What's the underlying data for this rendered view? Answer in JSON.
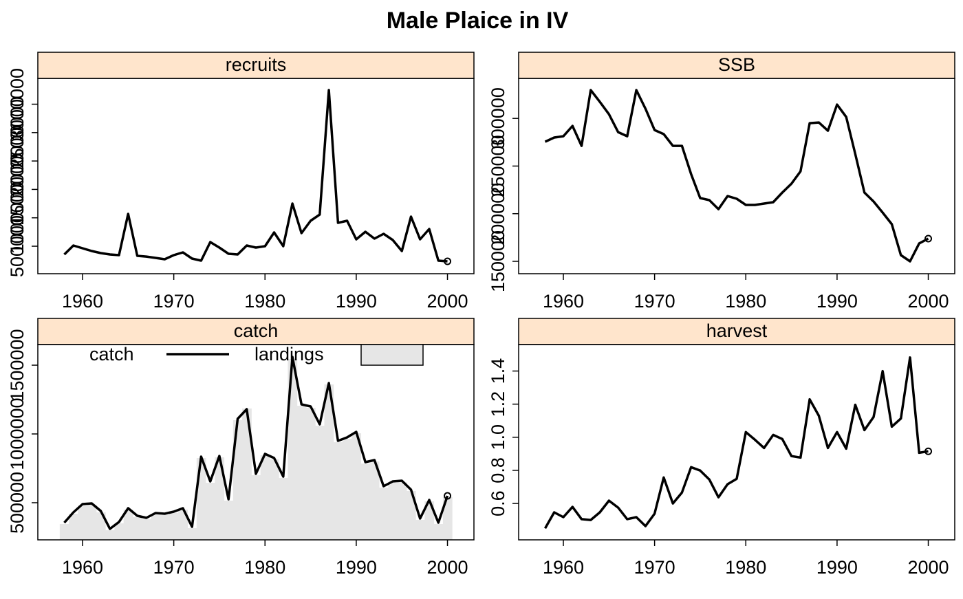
{
  "title": "Male Plaice in IV",
  "chart_data": [
    {
      "type": "line",
      "title": "recruits",
      "x": [
        1958,
        1959,
        1960,
        1961,
        1962,
        1963,
        1964,
        1965,
        1966,
        1967,
        1968,
        1969,
        1970,
        1971,
        1972,
        1973,
        1974,
        1975,
        1976,
        1977,
        1978,
        1979,
        1980,
        1981,
        1982,
        1983,
        1984,
        1985,
        1986,
        1987,
        1988,
        1989,
        1990,
        1991,
        1992,
        1993,
        1994,
        1995,
        1996,
        1997,
        1998,
        1999,
        2000
      ],
      "series": [
        {
          "name": "recruits",
          "color": "#000000",
          "values": [
            355000,
            512000,
            464000,
            415000,
            379000,
            355000,
            343000,
            1069000,
            331000,
            318000,
            294000,
            270000,
            343000,
            391000,
            282000,
            246000,
            573000,
            476000,
            367000,
            355000,
            512000,
            476000,
            500000,
            742000,
            500000,
            1251000,
            730000,
            948000,
            1057000,
            3248000,
            912000,
            948000,
            621000,
            754000,
            633000,
            718000,
            609000,
            415000,
            1021000,
            621000,
            803000,
            246000,
            234000
          ]
        }
      ],
      "xlim": [
        1955.1,
        2002.9
      ],
      "xticks": [
        1960,
        1970,
        1980,
        1990,
        2000
      ],
      "ylim": [
        16000,
        3454000
      ],
      "yticks": [
        500000,
        1000000,
        1500000,
        2000000,
        2500000,
        3000000
      ]
    },
    {
      "type": "line",
      "title": "SSB",
      "x": [
        1958,
        1959,
        1960,
        1961,
        1962,
        1963,
        1964,
        1965,
        1966,
        1967,
        1968,
        1969,
        1970,
        1971,
        1972,
        1973,
        1974,
        1975,
        1976,
        1977,
        1978,
        1979,
        1980,
        1981,
        1982,
        1983,
        1984,
        1985,
        1986,
        1987,
        1988,
        1989,
        1990,
        1991,
        1992,
        1993,
        1994,
        1995,
        1996,
        1997,
        1998,
        1999,
        2000
      ],
      "series": [
        {
          "name": "SSB",
          "color": "#000000",
          "values": [
            275500,
            279900,
            281300,
            292100,
            271200,
            329700,
            317400,
            304400,
            285600,
            281300,
            329700,
            310200,
            287800,
            283500,
            271200,
            271200,
            241600,
            216400,
            214200,
            204800,
            218500,
            215700,
            209200,
            209200,
            210600,
            212100,
            222200,
            231500,
            244500,
            295000,
            295700,
            287100,
            314500,
            301500,
            262600,
            222200,
            212800,
            201200,
            189000,
            156500,
            150000,
            168800,
            173800
          ]
        }
      ],
      "xlim": [
        1955.1,
        2002.9
      ],
      "xticks": [
        1960,
        1970,
        1980,
        1990,
        2000
      ],
      "ylim": [
        137000,
        342000
      ],
      "yticks": [
        150000,
        200000,
        250000,
        300000
      ]
    },
    {
      "type": "line",
      "title": "catch",
      "x": [
        1958,
        1959,
        1960,
        1961,
        1962,
        1963,
        1964,
        1965,
        1966,
        1967,
        1968,
        1969,
        1970,
        1971,
        1972,
        1973,
        1974,
        1975,
        1976,
        1977,
        1978,
        1979,
        1980,
        1981,
        1982,
        1983,
        1984,
        1985,
        1986,
        1987,
        1988,
        1989,
        1990,
        1991,
        1992,
        1993,
        1994,
        1995,
        1996,
        1997,
        1998,
        1999,
        2000
      ],
      "series": [
        {
          "name": "catch",
          "color": "#000000",
          "values": [
            355000,
            430000,
            490000,
            495000,
            440000,
            310000,
            360000,
            460000,
            405000,
            390000,
            425000,
            420000,
            435000,
            460000,
            325000,
            835000,
            655000,
            840000,
            525000,
            1110000,
            1180000,
            710000,
            855000,
            825000,
            690000,
            1560000,
            1215000,
            1200000,
            1070000,
            1370000,
            950000,
            975000,
            1015000,
            795000,
            810000,
            620000,
            655000,
            660000,
            595000,
            385000,
            520000,
            355000,
            550000
          ]
        },
        {
          "name": "landings",
          "color": "#e6e6e6",
          "values": [
            345000,
            420000,
            480000,
            485000,
            430000,
            300000,
            350000,
            450000,
            395000,
            380000,
            415000,
            410000,
            425000,
            450000,
            315000,
            825000,
            645000,
            830000,
            515000,
            1100000,
            1185000,
            700000,
            845000,
            815000,
            680000,
            1545000,
            1205000,
            1190000,
            1060000,
            1360000,
            940000,
            965000,
            1005000,
            785000,
            800000,
            610000,
            645000,
            650000,
            585000,
            375000,
            510000,
            345000,
            540000
          ]
        }
      ],
      "xlim": [
        1955.1,
        2002.9
      ],
      "xticks": [
        1960,
        1970,
        1980,
        1990,
        2000
      ],
      "ylim": [
        230000,
        1650000
      ],
      "yticks": [
        500000,
        1000000,
        1500000
      ]
    },
    {
      "type": "line",
      "title": "harvest",
      "x": [
        1958,
        1959,
        1960,
        1961,
        1962,
        1963,
        1964,
        1965,
        1966,
        1967,
        1968,
        1969,
        1970,
        1971,
        1972,
        1973,
        1974,
        1975,
        1976,
        1977,
        1978,
        1979,
        1980,
        1981,
        1982,
        1983,
        1984,
        1985,
        1986,
        1987,
        1988,
        1989,
        1990,
        1991,
        1992,
        1993,
        1994,
        1995,
        1996,
        1997,
        1998,
        1999,
        2000
      ],
      "series": [
        {
          "name": "harvest",
          "color": "#000000",
          "values": [
            0.45,
            0.546,
            0.517,
            0.579,
            0.505,
            0.5,
            0.546,
            0.617,
            0.575,
            0.505,
            0.517,
            0.463,
            0.538,
            0.757,
            0.6,
            0.666,
            0.819,
            0.799,
            0.745,
            0.637,
            0.716,
            0.749,
            1.031,
            0.985,
            0.935,
            1.014,
            0.989,
            0.886,
            0.877,
            1.229,
            1.13,
            0.935,
            1.031,
            0.931,
            1.196,
            1.043,
            1.122,
            1.399,
            1.064,
            1.113,
            1.482,
            0.906,
            0.915
          ]
        }
      ],
      "xlim": [
        1955.1,
        2002.9
      ],
      "xticks": [
        1960,
        1970,
        1980,
        1990,
        2000
      ],
      "ylim": [
        0.38,
        1.56
      ],
      "yticks": [
        0.6,
        0.8,
        {
          "value": 1,
          "label": "1.0"
        },
        1.2,
        1.4
      ]
    }
  ]
}
